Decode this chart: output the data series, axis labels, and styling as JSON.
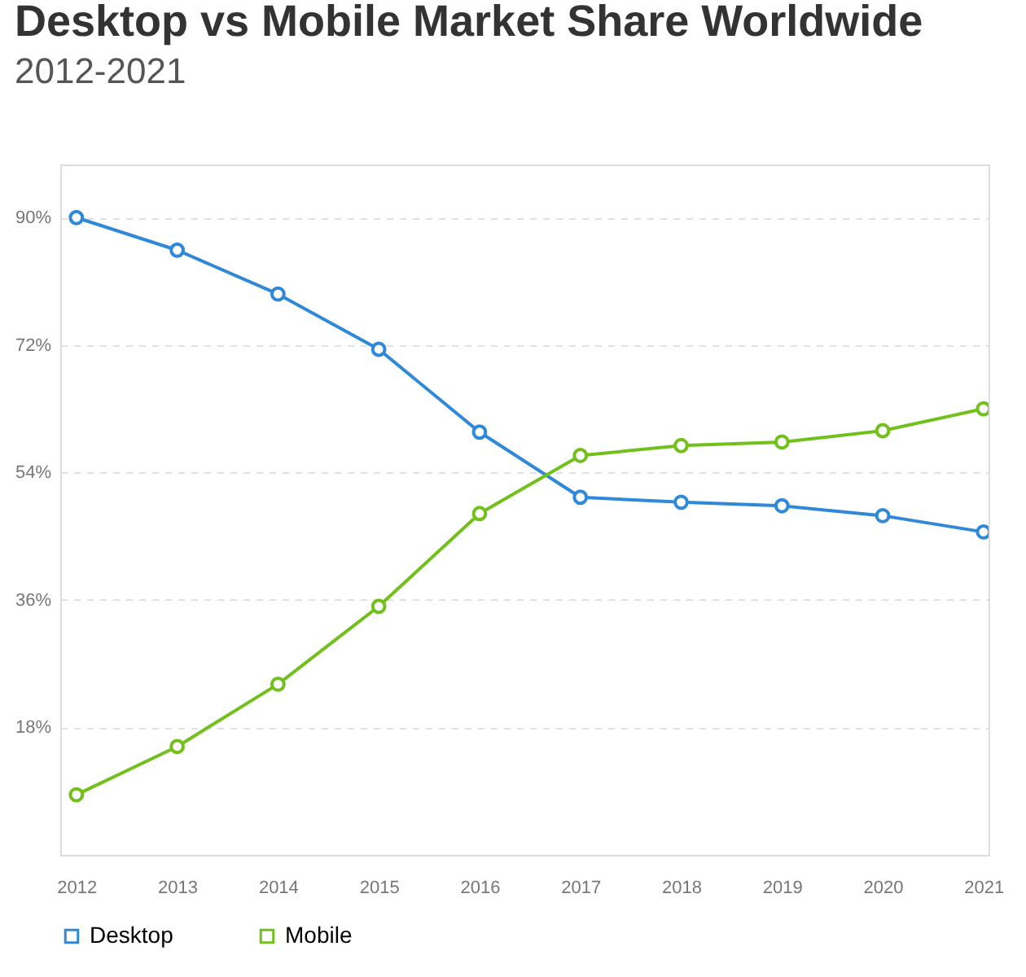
{
  "chart_data": {
    "type": "line",
    "title": "Desktop vs Mobile Market Share Worldwide",
    "subtitle": "2012-2021",
    "x": [
      2012,
      2013,
      2014,
      2015,
      2016,
      2017,
      2018,
      2019,
      2020,
      2021
    ],
    "xlim": [
      2011.84,
      2021.05
    ],
    "xticks": [
      2012,
      2013,
      2014,
      2015,
      2016,
      2017,
      2018,
      2019,
      2020,
      2021
    ],
    "ylim": [
      0,
      97.5
    ],
    "yticks": [
      {
        "value": 18,
        "label": "18%"
      },
      {
        "value": 36,
        "label": "36%"
      },
      {
        "value": 54,
        "label": "54%"
      },
      {
        "value": 72,
        "label": "72%"
      },
      {
        "value": 90,
        "label": "90%"
      }
    ],
    "series": [
      {
        "name": "Desktop",
        "color": "#2f88d8",
        "values": [
          90,
          85.4,
          79.2,
          71.4,
          59.7,
          50.5,
          49.8,
          49.3,
          47.9,
          45.6
        ]
      },
      {
        "name": "Mobile",
        "color": "#72c01c",
        "values": [
          8.5,
          15.3,
          24.1,
          35.1,
          48.2,
          56.4,
          57.8,
          58.3,
          59.9,
          63
        ]
      }
    ],
    "grid": "y",
    "legend": "bottom",
    "marker": "circle",
    "line_style": "solid"
  }
}
